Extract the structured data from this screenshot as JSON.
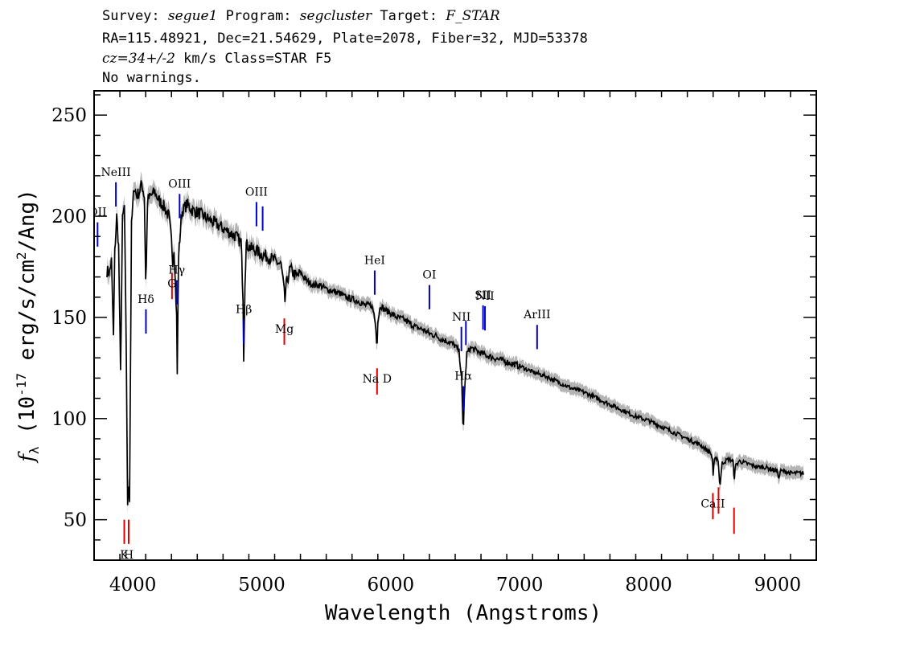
{
  "header": {
    "line1": {
      "survey_label": "Survey:",
      "survey": "segue1",
      "program_label": "Program:",
      "program": "segcluster",
      "target_label": "Target:",
      "target": "F_STAR"
    },
    "line2": "RA=115.48921, Dec=21.54629, Plate=2078, Fiber=32, MJD=53378",
    "line3": {
      "cz": "cz=34+/-2",
      "rest": "km/s Class=STAR F5"
    },
    "line4": "No warnings."
  },
  "chart_data": {
    "type": "line",
    "xlabel": "Wavelength (Angstroms)",
    "ylabel": "f_λ (10^-17 erg/s/cm^2/Ang)",
    "xlim": [
      3700,
      9300
    ],
    "ylim": [
      30,
      262
    ],
    "xticks": [
      4000,
      5000,
      6000,
      7000,
      8000,
      9000
    ],
    "yticks": [
      50,
      100,
      150,
      200,
      250
    ],
    "colors": {
      "spectrum": "#000000",
      "error_band": "#b4b4b4",
      "emission": "#0000cc",
      "absorption": "#dd0000"
    },
    "spectrum": {
      "x": [
        3800,
        3820,
        3835,
        3850,
        3860,
        3875,
        3890,
        3905,
        3920,
        3935,
        3950,
        3960,
        3968,
        3975,
        3990,
        4010,
        4030,
        4050,
        4070,
        4090,
        4100,
        4102,
        4105,
        4115,
        4140,
        4170,
        4200,
        4240,
        4280,
        4300,
        4310,
        4320,
        4340,
        4345,
        4355,
        4380,
        4420,
        4460,
        4500,
        4550,
        4600,
        4650,
        4700,
        4750,
        4800,
        4840,
        4855,
        4861,
        4868,
        4880,
        4920,
        4960,
        5000,
        5050,
        5100,
        5150,
        5170,
        5180,
        5190,
        5220,
        5270,
        5300,
        5350,
        5400,
        5450,
        5500,
        5550,
        5600,
        5650,
        5700,
        5750,
        5800,
        5850,
        5870,
        5885,
        5893,
        5900,
        5920,
        5950,
        6000,
        6050,
        6100,
        6150,
        6200,
        6250,
        6300,
        6350,
        6400,
        6450,
        6500,
        6530,
        6550,
        6558,
        6563,
        6570,
        6590,
        6620,
        6680,
        6750,
        6800,
        6850,
        6900,
        7000,
        7100,
        7200,
        7300,
        7400,
        7500,
        7600,
        7700,
        7800,
        7900,
        8000,
        8100,
        8200,
        8300,
        8400,
        8480,
        8495,
        8500,
        8510,
        8530,
        8542,
        8552,
        8570,
        8620,
        8655,
        8662,
        8670,
        8700,
        8750,
        8800,
        8850,
        8900,
        8950,
        9000,
        9010,
        9020,
        9050,
        9100,
        9150,
        9200
      ],
      "y": [
        173,
        172,
        178,
        140,
        182,
        200,
        185,
        122,
        198,
        205,
        130,
        55,
        72,
        60,
        195,
        215,
        210,
        212,
        216,
        210,
        170,
        130,
        175,
        208,
        210,
        212,
        208,
        205,
        200,
        188,
        178,
        185,
        150,
        122,
        180,
        202,
        206,
        203,
        202,
        200,
        198,
        196,
        194,
        192,
        190,
        187,
        160,
        125,
        165,
        186,
        184,
        183,
        181,
        180,
        178,
        176,
        165,
        158,
        166,
        174,
        170,
        172,
        168,
        166,
        166,
        164,
        163,
        162,
        160,
        159,
        158,
        156,
        156,
        152,
        145,
        135,
        148,
        156,
        154,
        152,
        150,
        149,
        147,
        145,
        144,
        142,
        141,
        139,
        138,
        136,
        133,
        120,
        100,
        92,
        110,
        132,
        135,
        133,
        131,
        130,
        129,
        128,
        126,
        123,
        121,
        118,
        115,
        113,
        110,
        107,
        104,
        101,
        99,
        96,
        93,
        90,
        87,
        83,
        80,
        72,
        79,
        81,
        78,
        66,
        78,
        80,
        79,
        68,
        76,
        79,
        78,
        77,
        76,
        76,
        75,
        74,
        70,
        74,
        74,
        73,
        73,
        73
      ]
    },
    "emission_lines": [
      {
        "name": "OII",
        "wave": 3727,
        "label": "OII"
      },
      {
        "name": "NeIII",
        "wave": 3869,
        "label": "NeIII"
      },
      {
        "name": "Hdelta",
        "wave": 4102,
        "label": "Hδ"
      },
      {
        "name": "Hgamma",
        "wave": 4341,
        "label": "Hγ"
      },
      {
        "name": "OIII-4363",
        "wave": 4363,
        "label": "OIII"
      },
      {
        "name": "Hbeta",
        "wave": 4861,
        "label": "Hβ"
      },
      {
        "name": "OIII-4959",
        "wave": 4959,
        "label": "OIII"
      },
      {
        "name": "OIII-5007",
        "wave": 5007,
        "label": ""
      },
      {
        "name": "HeI",
        "wave": 5876,
        "label": "HeI"
      },
      {
        "name": "OI",
        "wave": 6300,
        "label": "OI"
      },
      {
        "name": "NII-6548",
        "wave": 6548,
        "label": "NII"
      },
      {
        "name": "Halpha",
        "wave": 6563,
        "label": "Hα"
      },
      {
        "name": "NII-6583",
        "wave": 6583,
        "label": ""
      },
      {
        "name": "SII-6716",
        "wave": 6716,
        "label": "SII"
      },
      {
        "name": "SII-6731",
        "wave": 6731,
        "label": "NII"
      },
      {
        "name": "ArIII",
        "wave": 7135,
        "label": "ArIII"
      }
    ],
    "absorption_lines": [
      {
        "name": "K",
        "wave": 3934,
        "label": "K"
      },
      {
        "name": "H",
        "wave": 3968,
        "label": "H"
      },
      {
        "name": "G",
        "wave": 4304,
        "label": "G"
      },
      {
        "name": "Mg",
        "wave": 5175,
        "label": "Mg"
      },
      {
        "name": "NaD",
        "wave": 5894,
        "label": "Na D"
      },
      {
        "name": "CaII-8498",
        "wave": 8498,
        "label": "CaII"
      },
      {
        "name": "CaII-8542",
        "wave": 8542,
        "label": ""
      },
      {
        "name": "CaII-8662",
        "wave": 8662,
        "label": ""
      }
    ]
  }
}
